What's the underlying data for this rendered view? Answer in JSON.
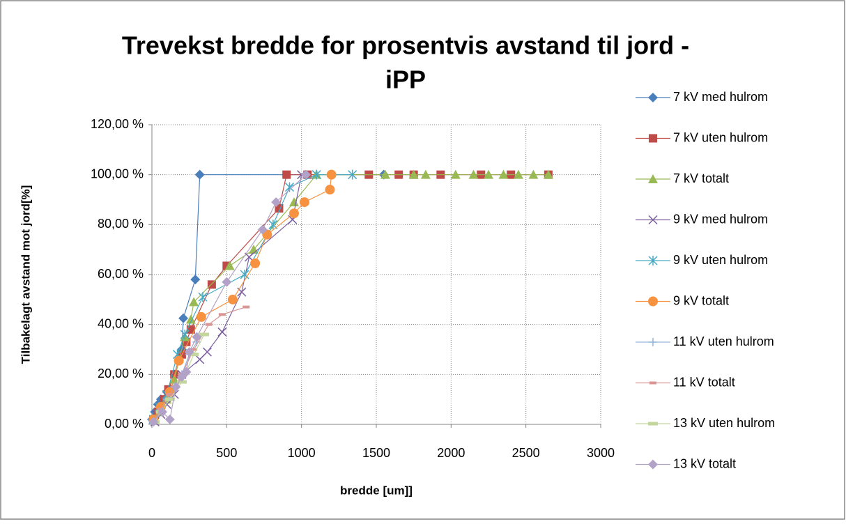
{
  "chart_data": {
    "type": "scatter",
    "title": [
      "Trevekst bredde for prosentvis avstand til jord -",
      "iPP"
    ],
    "x_label": "bredde [um]]",
    "y_label": "Tilbakelagt avstand mot jord[%]",
    "xlim": [
      0,
      3000
    ],
    "xticks": [
      0,
      500,
      1000,
      1500,
      2000,
      2500,
      3000
    ],
    "ylim": [
      0,
      120
    ],
    "yticks": [
      {
        "value": 0,
        "label": "0,00 %"
      },
      {
        "value": 20,
        "label": "20,00 %"
      },
      {
        "value": 40,
        "label": "40,00 %"
      },
      {
        "value": 60,
        "label": "60,00 %"
      },
      {
        "value": 80,
        "label": "80,00 %"
      },
      {
        "value": 100,
        "label": "100,00 %"
      },
      {
        "value": 120,
        "label": "120,00 %"
      }
    ],
    "grid": true,
    "legend": "right",
    "series": [
      {
        "name": "7 kV med hulrom",
        "color": "#4a7ebb",
        "marker": "diamond",
        "x": [
          0,
          20,
          40,
          60,
          100,
          150,
          200,
          210,
          290,
          320,
          1550
        ],
        "values": [
          2,
          5,
          8,
          10,
          13,
          20,
          30,
          42.5,
          58,
          100,
          100
        ]
      },
      {
        "name": "7 kV uten hulrom",
        "color": "#be4b48",
        "marker": "square",
        "x": [
          10,
          40,
          80,
          110,
          150,
          200,
          230,
          260,
          400,
          500,
          850,
          900,
          1040,
          1450,
          1650,
          1750,
          1930,
          2200,
          2400,
          2650
        ],
        "values": [
          2,
          5,
          10,
          14,
          20,
          28,
          33,
          38,
          56,
          63.5,
          86.5,
          100,
          100,
          100,
          100,
          100,
          100,
          100,
          100,
          100
        ]
      },
      {
        "name": "7 kV totalt",
        "color": "#98b954",
        "marker": "triangle",
        "x": [
          10,
          50,
          100,
          150,
          220,
          260,
          280,
          520,
          680,
          950,
          1100,
          1560,
          1750,
          1830,
          2030,
          2150,
          2250,
          2350,
          2450,
          2550,
          2650
        ],
        "values": [
          2,
          5,
          10,
          18,
          35,
          42,
          49,
          63.5,
          70,
          89,
          100,
          100,
          100,
          100,
          100,
          100,
          100,
          100,
          100,
          100,
          100
        ]
      },
      {
        "name": "9 kV med hulrom",
        "color": "#7d60a0",
        "marker": "x",
        "x": [
          20,
          60,
          100,
          150,
          200,
          320,
          370,
          470,
          600,
          650,
          940,
          1000
        ],
        "values": [
          1,
          4,
          8,
          12,
          20,
          26,
          29,
          37,
          53,
          67,
          82,
          100
        ]
      },
      {
        "name": "9 kV uten hulrom",
        "color": "#46aac5",
        "marker": "star",
        "x": [
          10,
          50,
          100,
          170,
          220,
          340,
          620,
          810,
          920,
          1100,
          1340
        ],
        "values": [
          2,
          7,
          12,
          28,
          36,
          51,
          60,
          80,
          95,
          100,
          100
        ]
      },
      {
        "name": "9 kV totalt",
        "color": "#f69240",
        "marker": "circle",
        "x": [
          10,
          60,
          120,
          180,
          330,
          540,
          690,
          770,
          950,
          1020,
          1190,
          1200
        ],
        "values": [
          2,
          7,
          13,
          25.5,
          43,
          50,
          64.5,
          76,
          84.5,
          89,
          94,
          100
        ]
      },
      {
        "name": "11 kV uten hulrom",
        "color": "#94b3d6",
        "marker": "plus",
        "x": [
          10,
          50,
          100,
          150,
          200,
          250,
          300
        ],
        "values": [
          1,
          5,
          10,
          15,
          20,
          28,
          33
        ]
      },
      {
        "name": "11 kV totalt",
        "color": "#d99694",
        "marker": "dash",
        "x": [
          10,
          60,
          120,
          200,
          280,
          380,
          470,
          630
        ],
        "values": [
          1,
          6,
          12,
          20,
          30,
          40,
          44,
          47
        ]
      },
      {
        "name": "13 kV uten hulrom",
        "color": "#c3d69b",
        "marker": "bar",
        "x": [
          20,
          60,
          120,
          200,
          280,
          350
        ],
        "values": [
          1,
          5,
          10,
          17,
          28,
          36
        ]
      },
      {
        "name": "13 kV totalt",
        "color": "#b3a2c7",
        "marker": "diamond",
        "x": [
          10,
          70,
          120,
          160,
          200,
          230,
          250,
          300,
          500,
          740,
          830,
          1030
        ],
        "values": [
          1,
          5,
          2,
          15,
          19,
          21,
          29,
          35,
          57,
          78,
          89,
          100
        ]
      }
    ]
  }
}
